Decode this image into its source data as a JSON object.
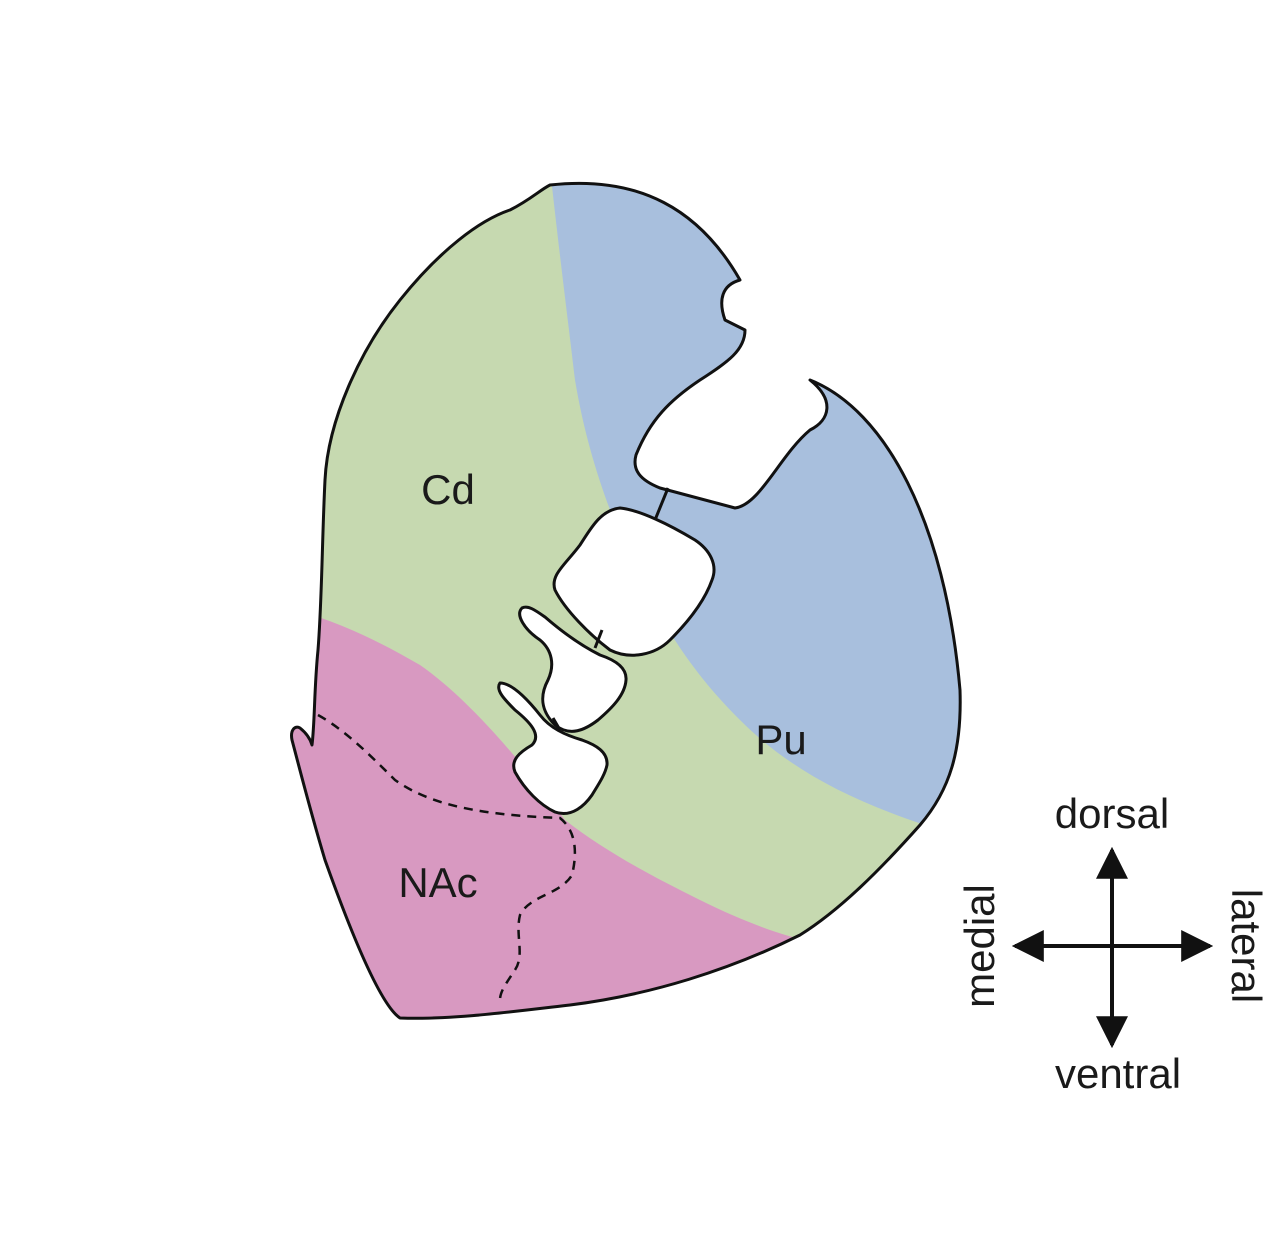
{
  "regions": {
    "caudate": {
      "label": "Cd",
      "color": "#c6d9b0"
    },
    "putamen": {
      "label": "Pu",
      "color": "#a8bfdd"
    },
    "nucleus_accumbens": {
      "label": "NAc",
      "color": "#d899c1"
    }
  },
  "outline_color": "#111111",
  "orientation": {
    "dorsal": "dorsal",
    "ventral": "ventral",
    "medial": "medial",
    "lateral": "lateral"
  }
}
